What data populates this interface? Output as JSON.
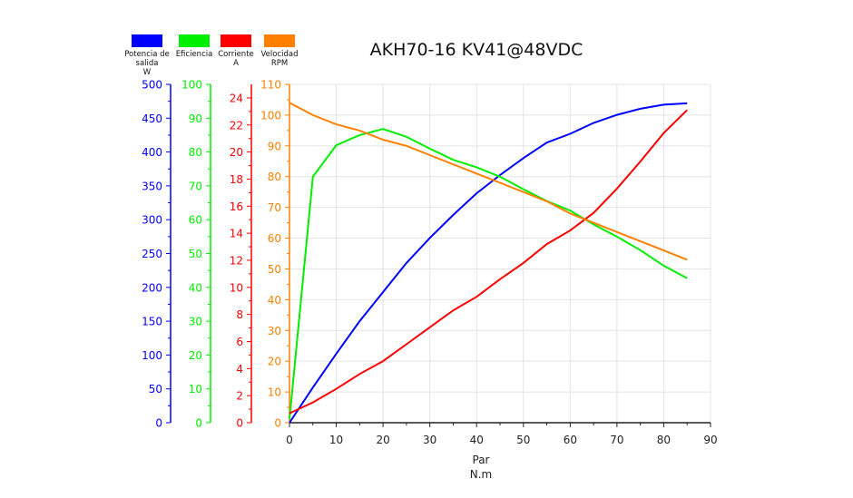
{
  "chart_data": {
    "type": "line",
    "title": "AKH70-16 KV41@48VDC",
    "xlabel": "Par",
    "xunit": "N.m",
    "xlim": [
      0,
      90
    ],
    "xticks": [
      0,
      10,
      20,
      30,
      40,
      50,
      60,
      70,
      80,
      90
    ],
    "grid": true,
    "legend_position": "top-left",
    "x": [
      0,
      5,
      10,
      15,
      20,
      25,
      30,
      35,
      40,
      45,
      50,
      55,
      60,
      65,
      70,
      75,
      80,
      85
    ],
    "series": [
      {
        "name": "Potencia de salida",
        "unit": "W",
        "color": "#0000ff",
        "ylim": [
          0,
          500
        ],
        "yticks": [
          0,
          50,
          100,
          150,
          200,
          250,
          300,
          350,
          400,
          450,
          500
        ],
        "values": [
          0,
          52,
          102,
          150,
          193,
          236,
          273,
          307,
          339,
          366,
          391,
          414,
          427,
          443,
          455,
          464,
          470,
          472
        ]
      },
      {
        "name": "Eficiencia",
        "unit": "",
        "color": "#00ee00",
        "ylim": [
          0,
          100
        ],
        "yticks": [
          0,
          10,
          20,
          30,
          40,
          50,
          60,
          70,
          80,
          90,
          100
        ],
        "values": [
          1,
          72.7,
          82,
          85,
          86.8,
          84.5,
          81,
          77.7,
          75.5,
          72.7,
          69,
          65.5,
          62.7,
          58.6,
          55,
          51,
          46.4,
          42.7
        ]
      },
      {
        "name": "Corriente",
        "unit": "A",
        "color": "#ff0000",
        "ylim": [
          0,
          25
        ],
        "yticks": [
          0,
          2,
          4,
          6,
          8,
          10,
          12,
          14,
          16,
          18,
          20,
          22,
          24
        ],
        "values": [
          0.7,
          1.5,
          2.5,
          3.6,
          4.55,
          5.8,
          7.05,
          8.3,
          9.3,
          10.6,
          11.8,
          13.2,
          14.2,
          15.5,
          17.3,
          19.3,
          21.4,
          23.1
        ]
      },
      {
        "name": "Velocidad",
        "unit": "RPM",
        "color": "#ff8000",
        "ylim": [
          0,
          110
        ],
        "yticks": [
          0,
          10,
          20,
          30,
          40,
          50,
          60,
          70,
          80,
          90,
          100,
          110
        ],
        "values": [
          104,
          100,
          97,
          95,
          92,
          90,
          87,
          84,
          81,
          78,
          75,
          72,
          68,
          65,
          62,
          59,
          56,
          53
        ]
      }
    ]
  }
}
